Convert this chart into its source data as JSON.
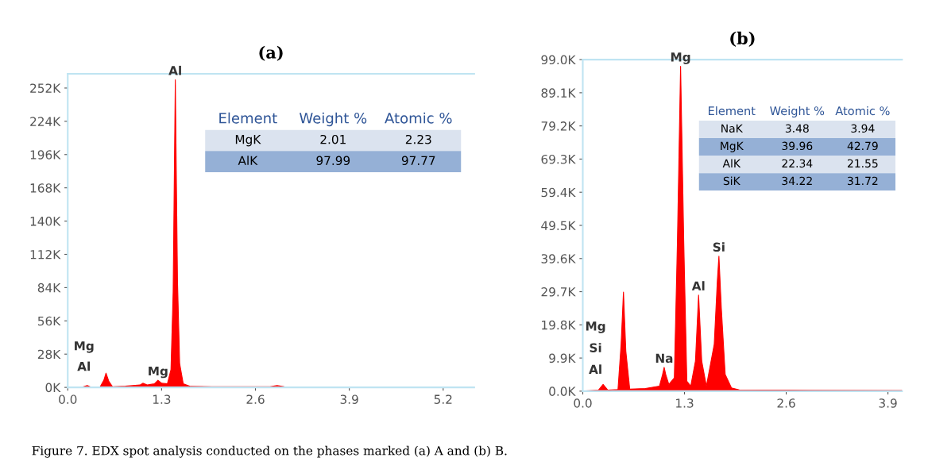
{
  "chart_data": [
    {
      "type": "area",
      "title": "(a)",
      "series": [
        {
          "color": "#ff0000",
          "x": [
            0,
            0.2,
            0.27,
            0.32,
            0.45,
            0.5,
            0.53,
            0.57,
            0.62,
            0.8,
            1.0,
            1.04,
            1.1,
            1.2,
            1.25,
            1.3,
            1.38,
            1.43,
            1.46,
            1.48,
            1.49,
            1.5,
            1.52,
            1.55,
            1.6,
            1.7,
            2.0,
            2.8,
            2.9,
            3.0,
            4.0,
            5.63
          ],
          "values": [
            0,
            300,
            1500,
            300,
            500,
            6000,
            12000,
            5000,
            500,
            1000,
            2000,
            3500,
            2000,
            3000,
            6000,
            3500,
            3000,
            15000,
            80000,
            200000,
            259000,
            200000,
            90000,
            20000,
            3000,
            800,
            600,
            500,
            1500,
            500,
            300,
            200
          ]
        }
      ],
      "xlim": [
        0,
        5.63
      ],
      "ylim": [
        0,
        264000
      ],
      "xticks": [
        {
          "value": 0,
          "label": "0.0"
        },
        1.3,
        2.6,
        3.9,
        5.2
      ],
      "yticks": [
        {
          "value": 0,
          "label": "0K"
        },
        {
          "value": 28000,
          "label": "28K"
        },
        {
          "value": 56000,
          "label": "56K"
        },
        {
          "value": 84000,
          "label": "84K"
        },
        {
          "value": 112000,
          "label": "112K"
        },
        {
          "value": 140000,
          "label": "140K"
        },
        {
          "value": 168000,
          "label": "168K"
        },
        {
          "value": 196000,
          "label": "196K"
        },
        {
          "value": 224000,
          "label": "224K"
        },
        {
          "value": 252000,
          "label": "252K"
        }
      ],
      "annotations": [
        {
          "text": "Al",
          "x": 1.49,
          "y": 259000
        },
        {
          "text": "Mg",
          "x": 1.25,
          "y": 6000
        },
        "Mg",
        "Al"
      ]
    },
    {
      "type": "other",
      "categories": [
        "Element",
        "Weight %",
        "Atomic %"
      ],
      "annotations": [
        "MgK",
        "2.01",
        "2.23",
        "AlK",
        "97.99",
        "97.77"
      ],
      "colors": [
        "#dbe3ef",
        "#95b0d6"
      ]
    },
    {
      "type": "area",
      "title": "(b)",
      "series": [
        {
          "color": "#ff0000",
          "x": [
            0,
            0.2,
            0.26,
            0.32,
            0.45,
            0.49,
            0.52,
            0.55,
            0.6,
            0.8,
            0.98,
            1.02,
            1.04,
            1.06,
            1.1,
            1.17,
            1.21,
            1.25,
            1.29,
            1.33,
            1.38,
            1.44,
            1.48,
            1.52,
            1.58,
            1.68,
            1.72,
            1.74,
            1.77,
            1.82,
            1.9,
            2.0,
            2.6,
            4.08
          ],
          "values": [
            0,
            300,
            2000,
            300,
            500,
            14000,
            29600,
            12000,
            600,
            800,
            1500,
            5000,
            7100,
            5000,
            2000,
            4000,
            45000,
            97000,
            45000,
            3000,
            1500,
            9000,
            28700,
            9000,
            1500,
            14000,
            33000,
            40300,
            25000,
            5000,
            1000,
            400,
            300,
            200
          ]
        }
      ],
      "xlim": [
        0,
        4.08
      ],
      "ylim": [
        0,
        99000
      ],
      "xticks": [
        {
          "value": 0,
          "label": "0.0"
        },
        1.3,
        2.6,
        3.9
      ],
      "yticks": [
        {
          "value": 0,
          "label": "0.0K"
        },
        {
          "value": 9900,
          "label": "9.9K"
        },
        {
          "value": 19800,
          "label": "19.8K"
        },
        {
          "value": 29700,
          "label": "29.7K"
        },
        {
          "value": 39600,
          "label": "39.6K"
        },
        {
          "value": 49500,
          "label": "49.5K"
        },
        {
          "value": 59400,
          "label": "59.4K"
        },
        {
          "value": 69300,
          "label": "69.3K"
        },
        {
          "value": 79200,
          "label": "79.2K"
        },
        {
          "value": 89100,
          "label": "89.1K"
        },
        {
          "value": 99000,
          "label": "99.0K"
        }
      ],
      "annotations": [
        {
          "text": "Mg",
          "x": 1.25,
          "y": 97000
        },
        {
          "text": "Si",
          "x": 1.74,
          "y": 40300
        },
        {
          "text": "Al",
          "x": 1.48,
          "y": 28700
        },
        {
          "text": "Na",
          "x": 1.04,
          "y": 7100
        },
        "Mg",
        "Si",
        "Al"
      ]
    },
    {
      "type": "other",
      "categories": [
        "Element",
        "Weight %",
        "Atomic %"
      ],
      "annotations": [
        "NaK",
        "3.48",
        "3.94",
        "MgK",
        "39.96",
        "42.79",
        "AlK",
        "22.34",
        "21.55",
        "SiK",
        "34.22",
        "31.72"
      ],
      "colors": [
        "#dbe3ef",
        "#95b0d6",
        "#dbe3ef",
        "#95b0d6"
      ]
    },
    {
      "type": "other",
      "annotations": [
        "Figure 7. EDX spot analysis conducted on the phases marked (a) A and (b) B."
      ]
    }
  ]
}
